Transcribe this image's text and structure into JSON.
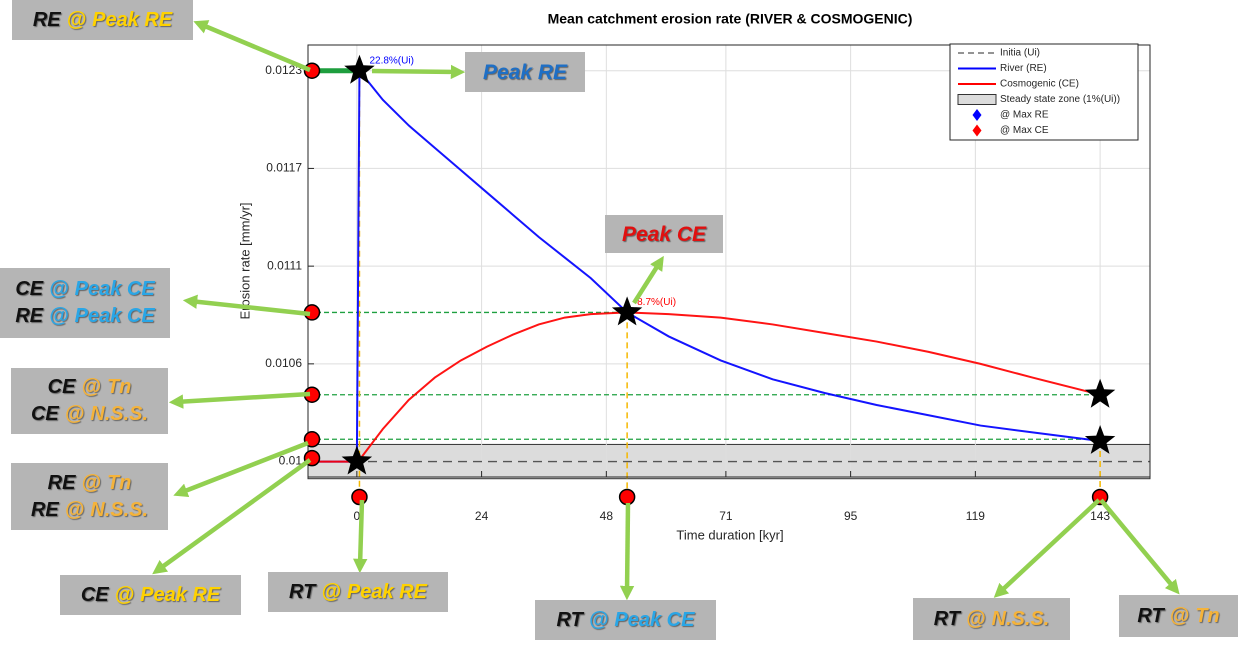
{
  "chart_data": {
    "type": "line",
    "title": "Mean catchment erosion rate (RIVER & COSMOGENIC)",
    "x_label": "Time duration [kyr]",
    "y_label": "Erosion rate [mm/yr]",
    "x": [
      -9,
      0,
      0.5,
      5,
      10,
      15,
      20,
      25,
      30,
      35,
      40,
      45,
      52,
      60,
      70,
      80,
      90,
      100,
      110,
      120,
      130,
      143
    ],
    "series": [
      {
        "name": "River (RE)",
        "color": "#0000ff",
        "values": [
          0.01,
          0.01,
          0.01228,
          0.01211,
          0.01196,
          0.01183,
          0.0117,
          0.01157,
          0.01144,
          0.01131,
          0.01119,
          0.01107,
          0.01087,
          0.01073,
          0.01059,
          0.01048,
          0.0104,
          0.01033,
          0.01027,
          0.01021,
          0.01017,
          0.01012
        ]
      },
      {
        "name": "Cosmogenic (CE)",
        "color": "#ff0000",
        "values": [
          0.01,
          0.01,
          0.01001,
          0.01019,
          0.01036,
          0.01049,
          0.01059,
          0.01067,
          0.01074,
          0.0108,
          0.01084,
          0.01086,
          0.01087,
          0.01086,
          0.01084,
          0.0108,
          0.01075,
          0.0107,
          0.01064,
          0.01057,
          0.01049,
          0.01039
        ]
      }
    ],
    "reference_line": {
      "name": "Initia (Ui)",
      "value": 0.01,
      "color": "#555555"
    },
    "steady_state_zone": {
      "name": "Steady state zone (1%(Ui))",
      "range": [
        0.0099,
        0.0101
      ],
      "color": "#dcdcdc"
    },
    "legend_markers": [
      {
        "name": "@ Max RE",
        "color": "#0000ff"
      },
      {
        "name": "@ Max CE",
        "color": "#ff0000"
      }
    ],
    "annotations": [
      {
        "text": "22.8%(Ui)",
        "x": 0.5,
        "y": 0.01228,
        "color": "#0000ff"
      },
      {
        "text": "8.7%(Ui)",
        "x": 52,
        "y": 0.01087,
        "color": "#ff0000"
      }
    ],
    "stars": [
      {
        "x": 0.5,
        "y": 0.01228
      },
      {
        "x": 52,
        "y": 0.01087
      },
      {
        "x": 143,
        "y": 0.01039
      },
      {
        "x": 143,
        "y": 0.01012
      },
      {
        "x": 0,
        "y": 0.01
      }
    ],
    "y_axis_points": [
      0.01228,
      0.01087,
      0.01039,
      0.01013,
      0.01002
    ],
    "x_axis_points": [
      0.5,
      52,
      143
    ],
    "xlim": [
      -9.4,
      152.6
    ],
    "ylim": [
      0.00991,
      0.01243
    ],
    "xticks": [
      0,
      24,
      48,
      71,
      95,
      119,
      143
    ],
    "yticks": [
      0.01,
      {
        "value": 0.01057,
        "label": "0.0106"
      },
      {
        "value": 0.01114,
        "label": "0.0111"
      },
      {
        "value": 0.01171,
        "label": "0.0117"
      },
      {
        "value": 0.01228,
        "label": "0.0123"
      }
    ],
    "grid": true,
    "legend": "top-right"
  },
  "callouts": [
    {
      "lines": [
        [
          "RE",
          "@",
          "Peak RE"
        ]
      ]
    },
    {
      "lines": [
        [
          "Peak RE"
        ]
      ]
    },
    {
      "lines": [
        [
          "Peak CE"
        ]
      ]
    },
    {
      "lines": [
        [
          "CE",
          "@",
          "Peak CE"
        ],
        [
          "RE",
          "@",
          "Peak CE"
        ]
      ]
    },
    {
      "lines": [
        [
          "CE",
          "@",
          "Tn"
        ],
        [
          "CE",
          "@",
          "N.S.S."
        ]
      ]
    },
    {
      "lines": [
        [
          "RE",
          "@",
          "Tn"
        ],
        [
          "RE",
          "@",
          "N.S.S."
        ]
      ]
    },
    {
      "lines": [
        [
          "CE",
          "@",
          "Peak RE"
        ]
      ]
    },
    {
      "lines": [
        [
          "RT",
          "@",
          "Peak RE"
        ]
      ]
    },
    {
      "lines": [
        [
          "RT",
          "@",
          "Peak CE"
        ]
      ]
    },
    {
      "lines": [
        [
          "RT",
          "@",
          "N.S.S."
        ]
      ]
    },
    {
      "lines": [
        [
          "RT",
          "@",
          "Tn"
        ]
      ]
    }
  ]
}
